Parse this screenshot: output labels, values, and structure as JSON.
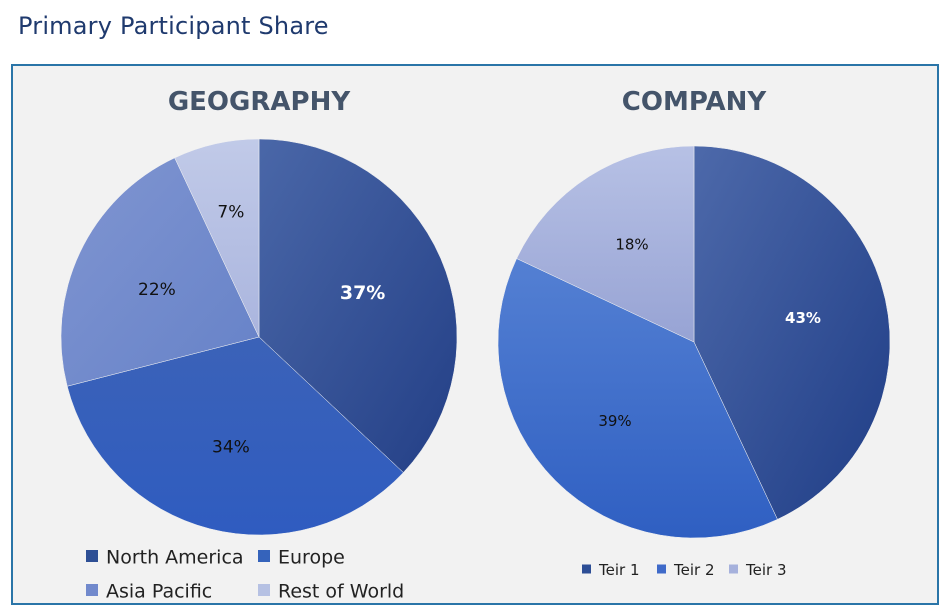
{
  "page": {
    "title": "Primary Participant Share"
  },
  "chart_data": [
    {
      "type": "pie",
      "title": "GEOGRAPHY",
      "categories": [
        "North America",
        "Europe",
        "Asia Pacific",
        "Rest of World"
      ],
      "values": [
        37,
        34,
        22,
        7
      ],
      "labels": [
        "37%",
        "34%",
        "22%",
        "7%"
      ],
      "colors": [
        "#2e4f95",
        "#3563bb",
        "#7189cc",
        "#b6c1e3"
      ],
      "label_colors": [
        "#ffffff",
        "#111111",
        "#111111",
        "#111111"
      ],
      "legend": "bottom"
    },
    {
      "type": "pie",
      "title": "COMPANY",
      "categories": [
        "Teir 1",
        "Teir 2",
        "Teir 3"
      ],
      "values": [
        43,
        39,
        18
      ],
      "labels": [
        "43%",
        "39%",
        "18%"
      ],
      "colors": [
        "#2d4e96",
        "#3f6ac9",
        "#a6b1dc"
      ],
      "label_colors": [
        "#ffffff",
        "#111111",
        "#111111"
      ],
      "legend": "bottom"
    }
  ]
}
